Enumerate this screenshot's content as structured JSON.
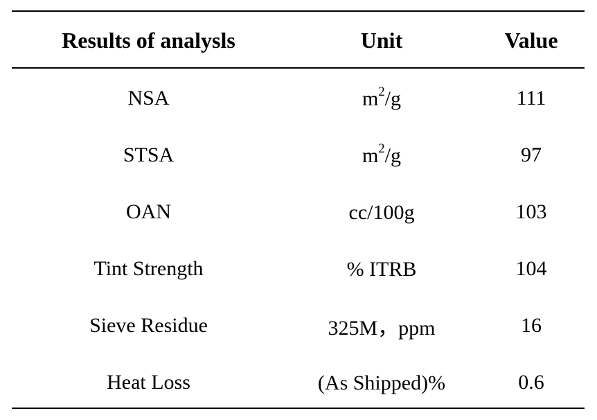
{
  "table": {
    "headers": [
      "Results of analysls",
      "Unit",
      "Value"
    ],
    "rows": [
      {
        "name": "NSA",
        "unit": "m",
        "unit_sup": "2",
        "unit_suffix": "/g",
        "value": "111"
      },
      {
        "name": "STSA",
        "unit": "m",
        "unit_sup": "2",
        "unit_suffix": "/g",
        "value": "97"
      },
      {
        "name": "OAN",
        "unit": "cc/100g",
        "unit_sup": "",
        "unit_suffix": "",
        "value": "103"
      },
      {
        "name": "Tint Strength",
        "unit": "% ITRB",
        "unit_sup": "",
        "unit_suffix": "",
        "value": "104"
      },
      {
        "name": "Sieve Residue",
        "unit": "325M，ppm",
        "unit_sup": "",
        "unit_suffix": "",
        "value": "16"
      },
      {
        "name": "Heat Loss",
        "unit": "(As Shipped)%",
        "unit_sup": "",
        "unit_suffix": "",
        "value": "0.6"
      }
    ]
  }
}
